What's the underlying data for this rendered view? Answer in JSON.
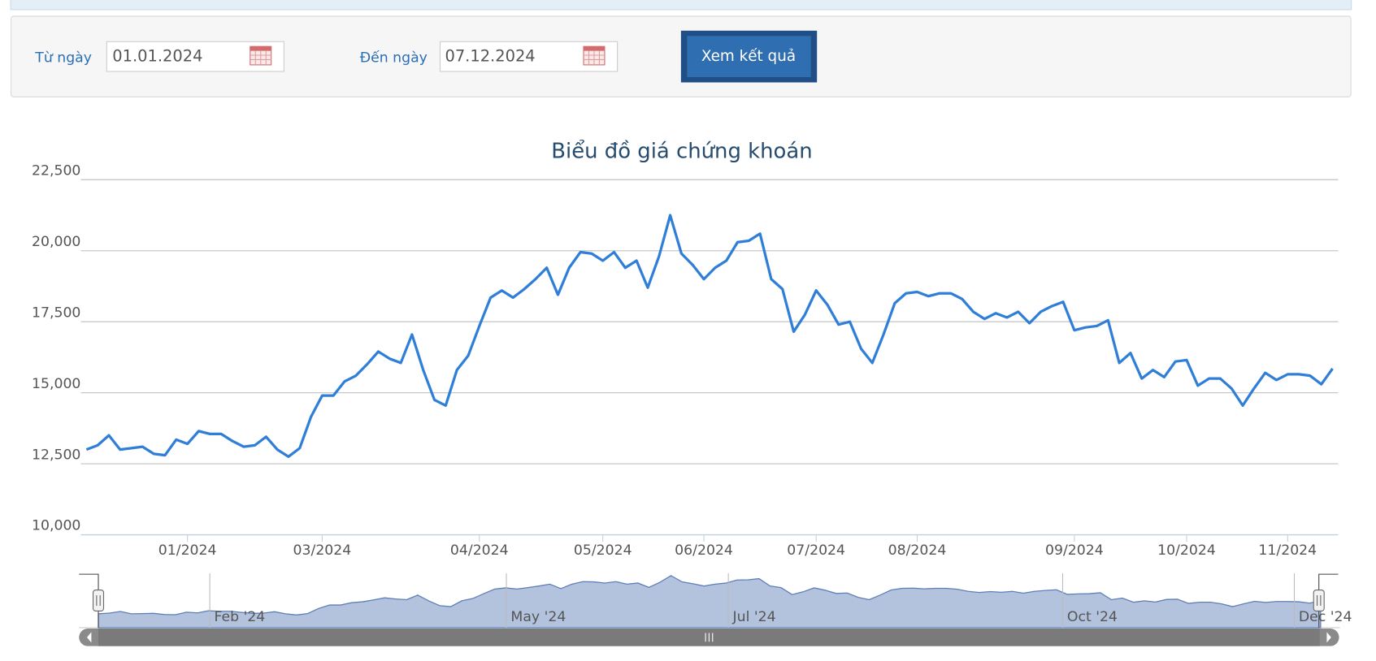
{
  "form": {
    "from_label": "Từ ngày",
    "from_value": "01.01.2024",
    "to_label": "Đến ngày",
    "to_value": "07.12.2024",
    "button": "Xem kết quả"
  },
  "chart_data": {
    "type": "line",
    "title": "Biểu đồ giá chứng khoán",
    "categories": [
      null,
      null,
      null,
      null,
      null,
      null,
      null,
      null,
      null,
      "01/2024",
      null,
      null,
      null,
      null,
      null,
      null,
      null,
      null,
      null,
      null,
      null,
      "03/2024",
      null,
      null,
      null,
      null,
      null,
      null,
      null,
      null,
      null,
      null,
      null,
      null,
      null,
      "04/2024",
      null,
      null,
      null,
      null,
      null,
      null,
      null,
      null,
      null,
      null,
      "05/2024",
      null,
      null,
      null,
      null,
      null,
      null,
      null,
      null,
      "06/2024",
      null,
      null,
      null,
      null,
      null,
      null,
      null,
      null,
      null,
      "07/2024",
      null,
      null,
      null,
      null,
      null,
      null,
      null,
      null,
      "08/2024",
      null,
      null,
      null,
      null,
      null,
      null,
      null,
      null,
      null,
      null,
      null,
      null,
      null,
      "09/2024",
      null,
      null,
      null,
      null,
      null,
      null,
      null,
      null,
      null,
      "10/2024",
      null,
      null,
      null,
      null,
      null,
      null,
      null,
      null,
      "11/2024",
      null,
      null,
      null,
      null
    ],
    "series": [
      {
        "color": "#2f7ed8",
        "values": [
          13000,
          13150,
          13500,
          13000,
          13050,
          13100,
          12850,
          12800,
          13350,
          13200,
          13650,
          13550,
          13550,
          13300,
          13100,
          13150,
          13450,
          13000,
          12750,
          13050,
          14150,
          14900,
          14900,
          15400,
          15600,
          16000,
          16450,
          16200,
          16050,
          17050,
          15800,
          14750,
          14550,
          15800,
          16300,
          17350,
          18350,
          18600,
          18350,
          18650,
          19000,
          19400,
          18450,
          19400,
          19950,
          19900,
          19650,
          19950,
          19400,
          19650,
          18700,
          19800,
          21250,
          19900,
          19500,
          19000,
          19400,
          19650,
          20300,
          20350,
          20600,
          19000,
          18650,
          17150,
          17750,
          18600,
          18100,
          17400,
          17500,
          16550,
          16050,
          17050,
          18150,
          18500,
          18550,
          18400,
          18500,
          18500,
          18300,
          17850,
          17600,
          17800,
          17650,
          17850,
          17450,
          17850,
          18050,
          18200,
          17200,
          17300,
          17350,
          17550,
          16050,
          16400,
          15500,
          15800,
          15550,
          16100,
          16150,
          15250,
          15500,
          15500,
          15150,
          14550,
          15150,
          15700,
          15450,
          15650,
          15650,
          15600,
          15300,
          15850
        ]
      }
    ],
    "ylim": [
      10000,
      22500
    ],
    "yticks": [
      {
        "value": 10000,
        "label": "10,000"
      },
      {
        "value": 12500,
        "label": "12,500"
      },
      {
        "value": 15000,
        "label": "15,000"
      },
      {
        "value": 17500,
        "label": "17,500"
      },
      {
        "value": 20000,
        "label": "20,000"
      },
      {
        "value": 22500,
        "label": "22,500"
      }
    ],
    "grid": true,
    "navigator_labels": [
      "Feb '24",
      "May '24",
      "Jul '24",
      "Oct '24",
      "Dec '24"
    ]
  }
}
